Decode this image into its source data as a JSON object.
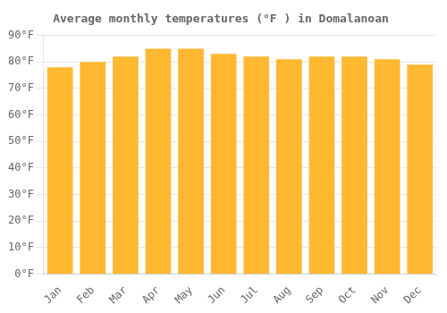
{
  "chart_data": {
    "type": "bar",
    "title": "Average monthly temperatures (°F ) in Domalanoan",
    "categories": [
      "Jan",
      "Feb",
      "Mar",
      "Apr",
      "May",
      "Jun",
      "Jul",
      "Aug",
      "Sep",
      "Oct",
      "Nov",
      "Dec"
    ],
    "values": [
      78,
      80,
      82,
      85,
      85,
      83,
      82,
      81,
      82,
      82,
      81,
      79
    ],
    "color": "#FFB830",
    "ylim": [
      0,
      90
    ],
    "yticks": [
      {
        "value": 0,
        "label": "0°F"
      },
      {
        "value": 10,
        "label": "10°F"
      },
      {
        "value": 20,
        "label": "20°F"
      },
      {
        "value": 30,
        "label": "30°F"
      },
      {
        "value": 40,
        "label": "40°F"
      },
      {
        "value": 50,
        "label": "50°F"
      },
      {
        "value": 60,
        "label": "60°F"
      },
      {
        "value": 70,
        "label": "70°F"
      },
      {
        "value": 80,
        "label": "80°F"
      },
      {
        "value": 90,
        "label": "90°F"
      }
    ],
    "grid": true
  }
}
